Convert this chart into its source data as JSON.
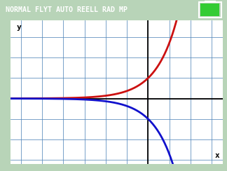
{
  "header_text": "NORMAL FLYT AUTO REELL RAD MP",
  "header_bg": "#4a4a4a",
  "header_fg": "#ffffff",
  "graph_bg": "#b8d4b8",
  "plot_bg": "#ffffff",
  "grid_color": "#5588bb",
  "axis_color": "#000000",
  "curve1_color": "#cc1111",
  "curve2_color": "#1111cc",
  "battery_color": "#33cc33",
  "xlabel": "x",
  "ylabel": "y",
  "xlim": [
    -6.5,
    3.5
  ],
  "ylim": [
    -3.2,
    3.8
  ],
  "figwidth": 3.24,
  "figheight": 2.44,
  "dpi": 100
}
